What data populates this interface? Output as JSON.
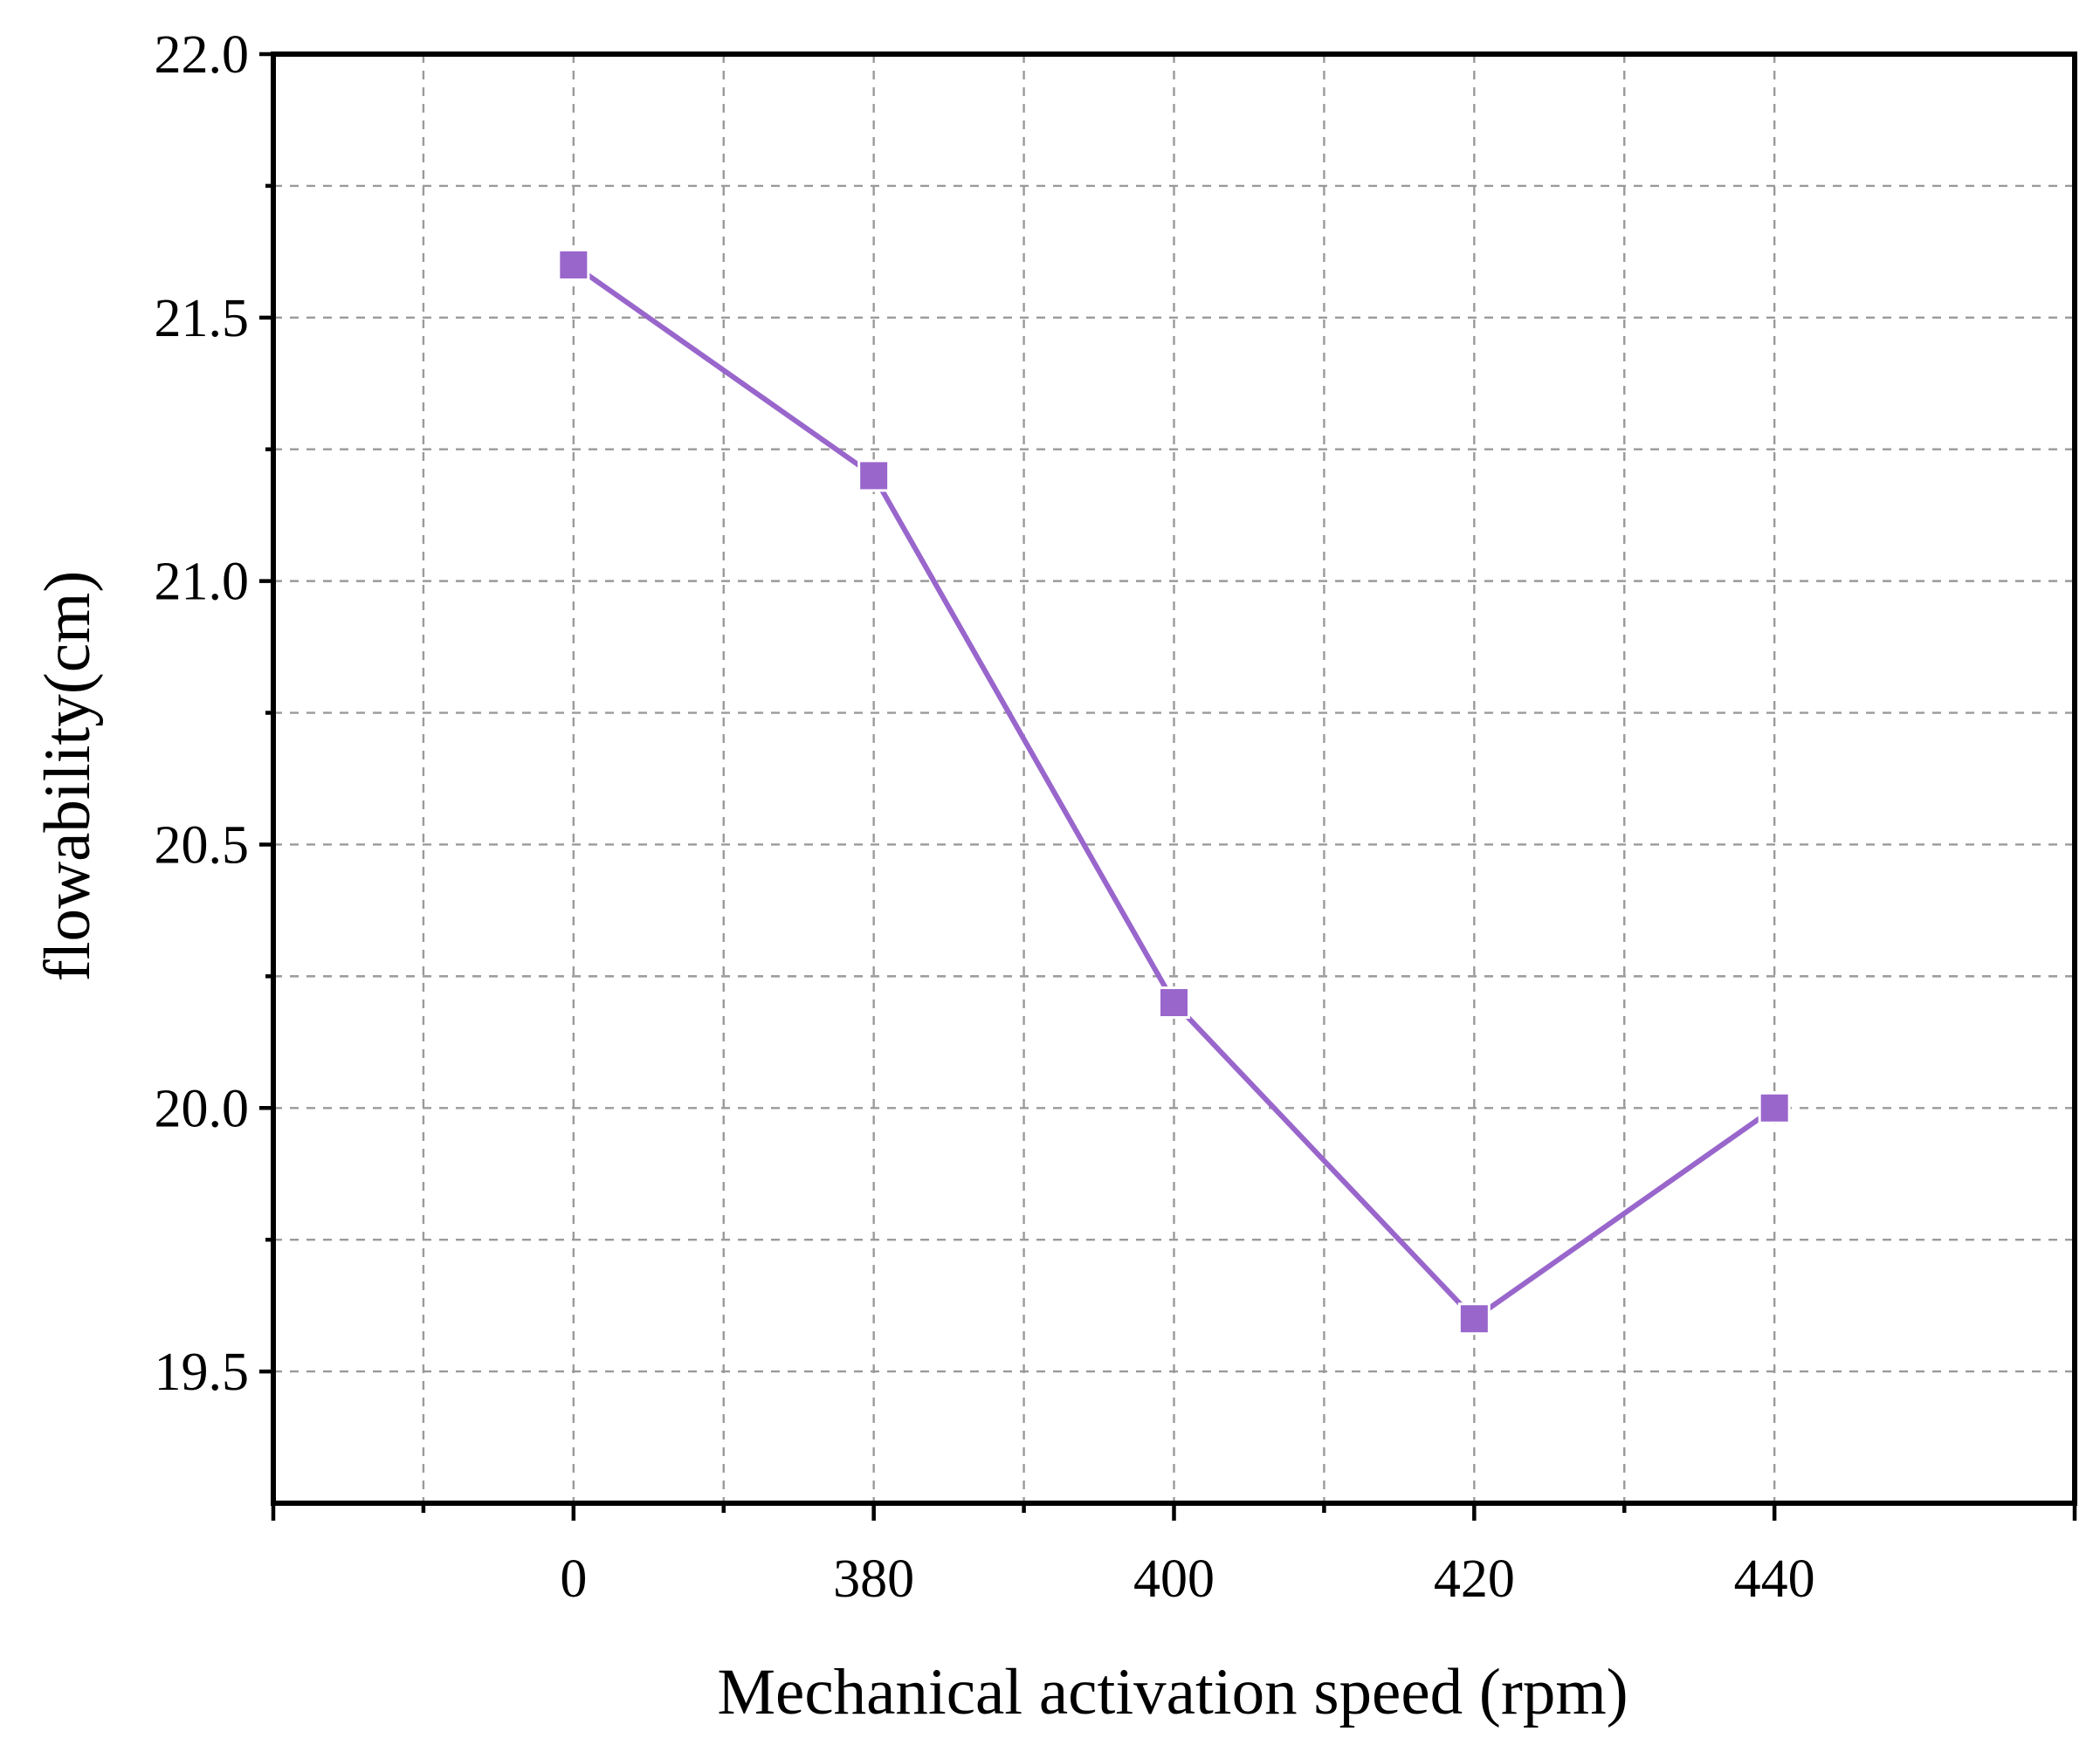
{
  "chart_data": {
    "type": "line",
    "title": "",
    "xlabel": "Mechanical activation speed (rpm)",
    "ylabel": "flowability(cm)",
    "categories": [
      "0",
      "380",
      "400",
      "420",
      "440"
    ],
    "series": [
      {
        "name": "flowability",
        "values": [
          21.6,
          21.2,
          20.2,
          19.6,
          20.0
        ],
        "color": "#9966CC",
        "marker": "square"
      }
    ],
    "ylim": [
      19.25,
      22.0
    ],
    "y_ticks": [
      "19.5",
      "20.0",
      "20.5",
      "21.0",
      "21.5",
      "22.0"
    ],
    "y_tick_values": [
      19.5,
      20.0,
      20.5,
      21.0,
      21.5,
      22.0
    ],
    "y_minor_tick_values": [
      19.75,
      20.25,
      20.75,
      21.25,
      21.75
    ],
    "grid": true,
    "legend": "none"
  }
}
